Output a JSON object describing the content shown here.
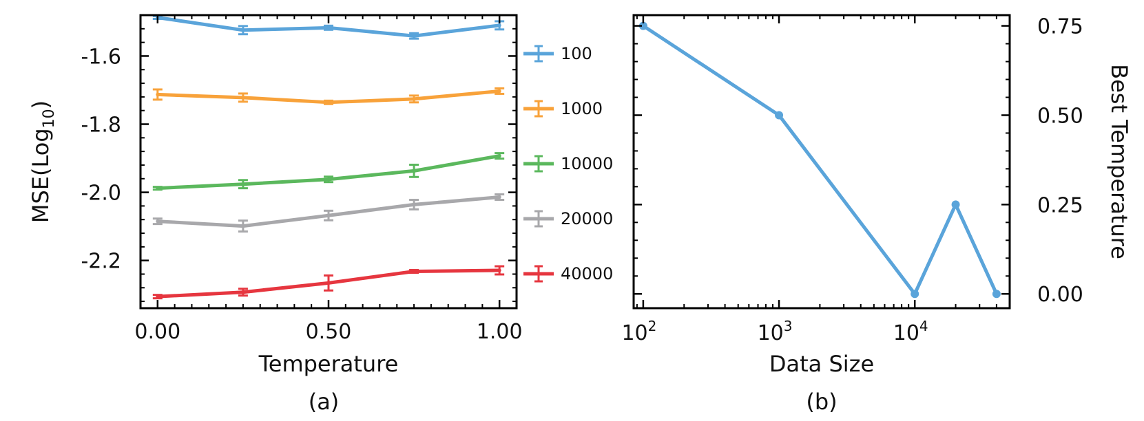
{
  "chart_data": [
    {
      "type": "line",
      "caption": "(a)",
      "xlabel": "Temperature",
      "ylabel": "MSE(Log10)",
      "ylabel_base": "MSE(Log",
      "ylabel_sub": "10",
      "ylabel_close": ")",
      "xlim": [
        -0.05,
        1.05
      ],
      "ylim": [
        -2.34,
        -1.48
      ],
      "xticks": [
        0.0,
        0.5,
        1.0
      ],
      "xtick_labels": [
        "0.00",
        "0.50",
        "1.00"
      ],
      "yticks": [
        -1.6,
        -1.8,
        -2.0,
        -2.2
      ],
      "ytick_labels": [
        "-1.6",
        "-1.8",
        "-2.0",
        "-2.2"
      ],
      "x": [
        0.0,
        0.25,
        0.5,
        0.75,
        1.0
      ],
      "legend_position": "right",
      "series": [
        {
          "name": "100",
          "color": "#5aa4da",
          "values": [
            -1.487,
            -1.524,
            -1.517,
            -1.541,
            -1.51
          ],
          "errors": [
            0.004,
            0.012,
            0.006,
            0.008,
            0.012
          ]
        },
        {
          "name": "1000",
          "color": "#f8a23a",
          "values": [
            -1.713,
            -1.722,
            -1.736,
            -1.726,
            -1.703
          ],
          "errors": [
            0.015,
            0.012,
            0.005,
            0.01,
            0.008
          ]
        },
        {
          "name": "10000",
          "color": "#5bb85d",
          "values": [
            -1.988,
            -1.976,
            -1.962,
            -1.937,
            -1.893
          ],
          "errors": [
            0.004,
            0.012,
            0.008,
            0.018,
            0.008
          ]
        },
        {
          "name": "20000",
          "color": "#a8a8ab",
          "values": [
            -2.085,
            -2.099,
            -2.068,
            -2.036,
            -2.014
          ],
          "errors": [
            0.008,
            0.016,
            0.014,
            0.014,
            0.008
          ]
        },
        {
          "name": "40000",
          "color": "#e6363f",
          "values": [
            -2.306,
            -2.293,
            -2.266,
            -2.232,
            -2.229
          ],
          "errors": [
            0.005,
            0.01,
            0.022,
            0.004,
            0.012
          ]
        }
      ]
    },
    {
      "type": "line",
      "caption": "(b)",
      "xlabel": "Data Size",
      "ylabel": "Best Temperature",
      "xscale": "log",
      "xlim": [
        85,
        50000
      ],
      "ylim": [
        -0.04,
        0.78
      ],
      "xticks": [
        100,
        1000,
        10000
      ],
      "xtick_base": "10",
      "xtick_exponents": [
        "2",
        "3",
        "4"
      ],
      "yticks": [
        0.0,
        0.25,
        0.5,
        0.75
      ],
      "ytick_labels": [
        "0.00",
        "0.25",
        "0.50",
        "0.75"
      ],
      "yaxis_side": "right",
      "series": [
        {
          "color": "#5aa4da",
          "x": [
            100,
            1000,
            10000,
            20000,
            40000
          ],
          "values": [
            0.75,
            0.5,
            0.0,
            0.25,
            0.0
          ]
        }
      ]
    }
  ]
}
